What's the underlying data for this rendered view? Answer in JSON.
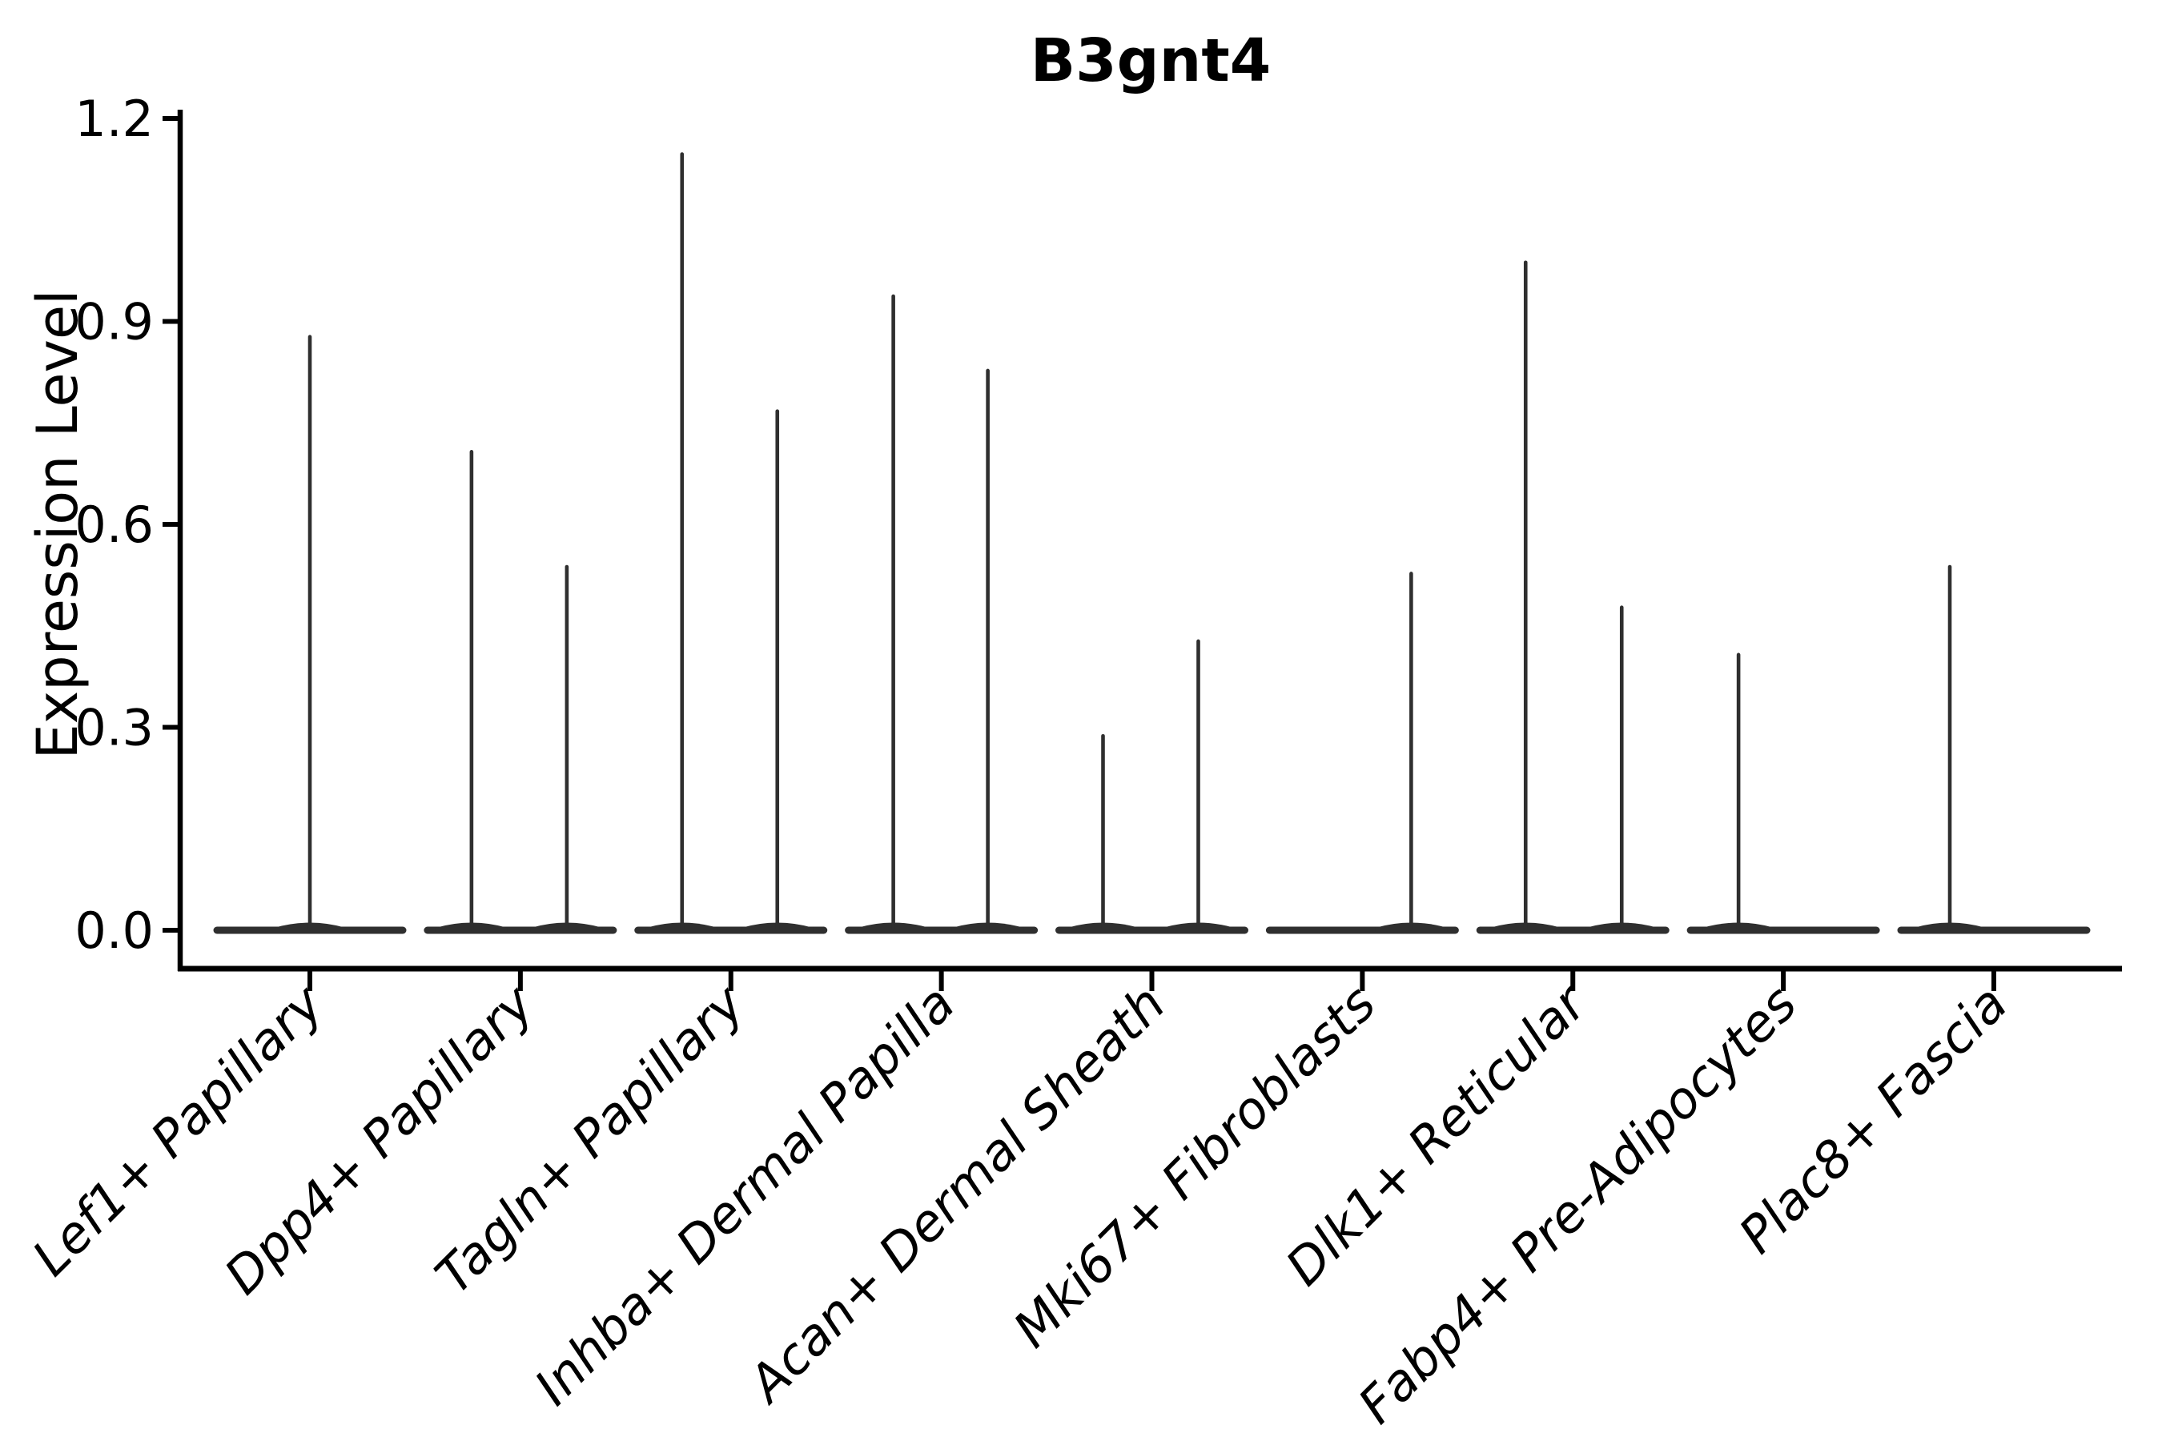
{
  "chart_data": {
    "type": "violin",
    "title": "B3gnt4",
    "ylabel": "Expression Level",
    "xlabel": "",
    "ylim": [
      0.0,
      1.2
    ],
    "ytick_values": [
      0.0,
      0.3,
      0.6,
      0.9,
      1.2
    ],
    "ytick_labels": [
      "0.0",
      "0.3",
      "0.6",
      "0.9",
      "1.2"
    ],
    "grid": false,
    "legend": "none",
    "x_tick_rotation_deg": 45,
    "categories": [
      "Lef1+ Papillary",
      "Dpp4+ Papillary",
      "Tagln+ Papillary",
      "Inhba+ Dermal Papilla",
      "Acan+ Dermal Sheath",
      "Mki67+ Fibroblasts",
      "Dlk1+ Reticular",
      "Fabp4+ Pre-Adipocytes",
      "Plac8+ Fascia"
    ],
    "violins": [
      {
        "category": "Lef1+ Papillary",
        "spikes": [
          {
            "offset": 0,
            "max": 0.88
          }
        ]
      },
      {
        "category": "Dpp4+ Papillary",
        "spikes": [
          {
            "offset": -61,
            "max": 0.71
          },
          {
            "offset": 58,
            "max": 0.54
          }
        ]
      },
      {
        "category": "Tagln+ Papillary",
        "spikes": [
          {
            "offset": -61,
            "max": 1.15
          },
          {
            "offset": 58,
            "max": 0.77
          }
        ]
      },
      {
        "category": "Inhba+ Dermal Papilla",
        "spikes": [
          {
            "offset": -60,
            "max": 0.94
          },
          {
            "offset": 58,
            "max": 0.83
          }
        ]
      },
      {
        "category": "Acan+ Dermal Sheath",
        "spikes": [
          {
            "offset": -61,
            "max": 0.29
          },
          {
            "offset": 58,
            "max": 0.43
          }
        ]
      },
      {
        "category": "Mki67+ Fibroblasts",
        "spikes": [
          {
            "offset": 61,
            "max": 0.53
          }
        ]
      },
      {
        "category": "Dlk1+ Reticular",
        "spikes": [
          {
            "offset": -59,
            "max": 0.99
          },
          {
            "offset": 61,
            "max": 0.48
          }
        ]
      },
      {
        "category": "Fabp4+ Pre-Adipocytes",
        "spikes": [
          {
            "offset": -56,
            "max": 0.41
          }
        ]
      },
      {
        "category": "Plac8+ Fascia",
        "spikes": [
          {
            "offset": -55,
            "max": 0.54
          }
        ]
      }
    ],
    "colors": {
      "violin": "#2f2f2f",
      "axis": "#000000",
      "text": "#000000",
      "background": "#ffffff"
    }
  }
}
